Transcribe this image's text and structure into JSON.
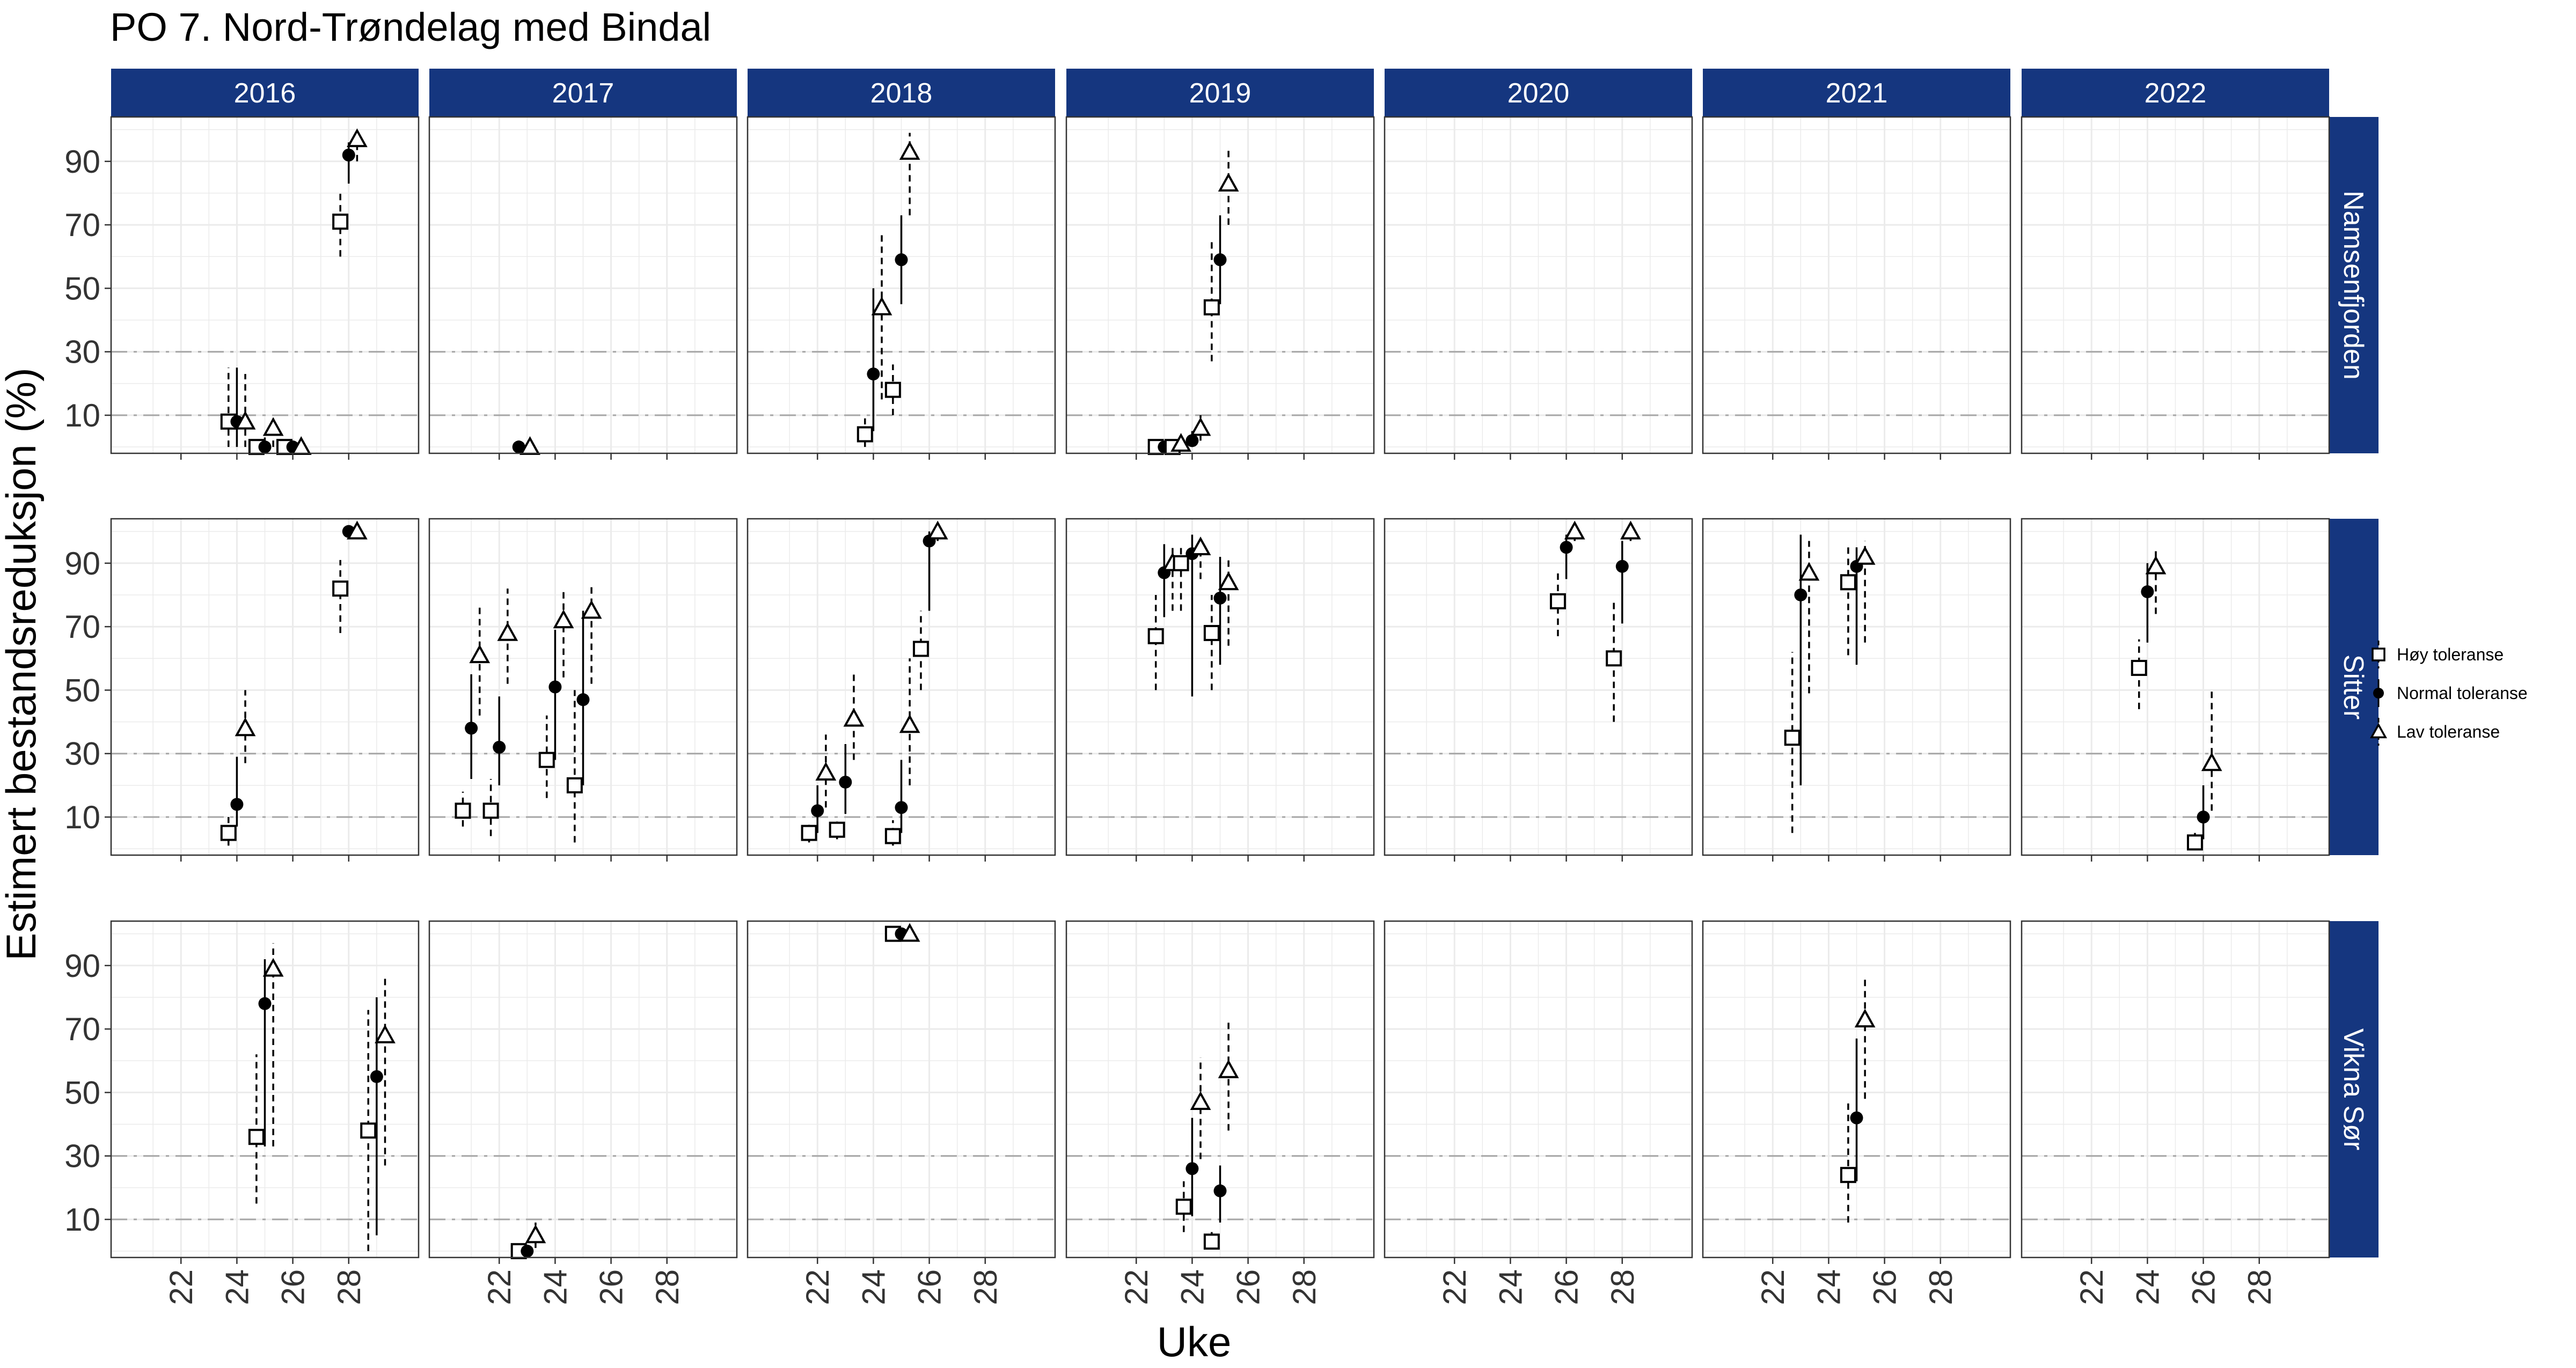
{
  "chart_data": {
    "type": "scatter",
    "title": "PO 7. Nord-Trøndelag med Bindal",
    "xlabel": "Uke",
    "ylabel": "Estimert bestandsreduksjon (%)",
    "x_ticks": [
      22,
      24,
      26,
      28
    ],
    "y_ticks": [
      10,
      30,
      50,
      70,
      90
    ],
    "xlim": [
      19.5,
      30.5
    ],
    "ylim": [
      -2,
      104
    ],
    "reference_lines": [
      10,
      30
    ],
    "grid": true,
    "legend_position": "right",
    "columns": [
      "2016",
      "2017",
      "2018",
      "2019",
      "2020",
      "2021",
      "2022"
    ],
    "rows": [
      "Namsenfjorden",
      "Sitter",
      "Vikna Sør"
    ],
    "series": [
      {
        "name": "Høy toleranse",
        "marker": "open-square",
        "line": "dashed"
      },
      {
        "name": "Normal toleranse",
        "marker": "filled-circle",
        "line": "solid"
      },
      {
        "name": "Lav toleranse",
        "marker": "open-triangle",
        "line": "dashed"
      }
    ],
    "colors": {
      "strip": "#15367f",
      "grid": "#ebebeb",
      "reference": "#a6a6a6",
      "marks": "#000000"
    },
    "points": [
      {
        "row": "Namsenfjorden",
        "col": "2016",
        "s": 0,
        "x": 23.7,
        "y": 8,
        "lo": 0,
        "hi": 25
      },
      {
        "row": "Namsenfjorden",
        "col": "2016",
        "s": 1,
        "x": 24.0,
        "y": 8,
        "lo": 0,
        "hi": 25
      },
      {
        "row": "Namsenfjorden",
        "col": "2016",
        "s": 2,
        "x": 24.3,
        "y": 8,
        "lo": 0,
        "hi": 23
      },
      {
        "row": "Namsenfjorden",
        "col": "2016",
        "s": 0,
        "x": 24.7,
        "y": 0,
        "lo": 0,
        "hi": 3
      },
      {
        "row": "Namsenfjorden",
        "col": "2016",
        "s": 1,
        "x": 25.0,
        "y": 0,
        "lo": 0,
        "hi": 3
      },
      {
        "row": "Namsenfjorden",
        "col": "2016",
        "s": 2,
        "x": 25.3,
        "y": 6,
        "lo": 0,
        "hi": 9
      },
      {
        "row": "Namsenfjorden",
        "col": "2016",
        "s": 0,
        "x": 25.7,
        "y": 0,
        "lo": 0,
        "hi": 2
      },
      {
        "row": "Namsenfjorden",
        "col": "2016",
        "s": 1,
        "x": 26.0,
        "y": 0,
        "lo": 0,
        "hi": 2
      },
      {
        "row": "Namsenfjorden",
        "col": "2016",
        "s": 2,
        "x": 26.3,
        "y": 0,
        "lo": 0,
        "hi": 3
      },
      {
        "row": "Namsenfjorden",
        "col": "2016",
        "s": 0,
        "x": 27.7,
        "y": 71,
        "lo": 60,
        "hi": 80
      },
      {
        "row": "Namsenfjorden",
        "col": "2016",
        "s": 1,
        "x": 28.0,
        "y": 92,
        "lo": 83,
        "hi": 96
      },
      {
        "row": "Namsenfjorden",
        "col": "2016",
        "s": 2,
        "x": 28.3,
        "y": 97,
        "lo": 90,
        "hi": 99
      },
      {
        "row": "Namsenfjorden",
        "col": "2017",
        "s": 1,
        "x": 22.7,
        "y": 0,
        "lo": 0,
        "hi": 2
      },
      {
        "row": "Namsenfjorden",
        "col": "2017",
        "s": 2,
        "x": 23.1,
        "y": 0,
        "lo": 0,
        "hi": 2
      },
      {
        "row": "Namsenfjorden",
        "col": "2018",
        "s": 0,
        "x": 23.7,
        "y": 4,
        "lo": 0,
        "hi": 9
      },
      {
        "row": "Namsenfjorden",
        "col": "2018",
        "s": 1,
        "x": 24.0,
        "y": 23,
        "lo": 5,
        "hi": 50
      },
      {
        "row": "Namsenfjorden",
        "col": "2018",
        "s": 2,
        "x": 24.3,
        "y": 44,
        "lo": 15,
        "hi": 67
      },
      {
        "row": "Namsenfjorden",
        "col": "2018",
        "s": 0,
        "x": 24.7,
        "y": 18,
        "lo": 10,
        "hi": 26
      },
      {
        "row": "Namsenfjorden",
        "col": "2018",
        "s": 1,
        "x": 25.0,
        "y": 59,
        "lo": 45,
        "hi": 73
      },
      {
        "row": "Namsenfjorden",
        "col": "2018",
        "s": 2,
        "x": 25.3,
        "y": 93,
        "lo": 73,
        "hi": 99
      },
      {
        "row": "Namsenfjorden",
        "col": "2019",
        "s": 0,
        "x": 22.7,
        "y": 0,
        "lo": 0,
        "hi": 2
      },
      {
        "row": "Namsenfjorden",
        "col": "2019",
        "s": 1,
        "x": 23.0,
        "y": 0,
        "lo": 0,
        "hi": 2
      },
      {
        "row": "Namsenfjorden",
        "col": "2019",
        "s": 0,
        "x": 23.3,
        "y": 0,
        "lo": 0,
        "hi": 2
      },
      {
        "row": "Namsenfjorden",
        "col": "2019",
        "s": 2,
        "x": 23.6,
        "y": 1,
        "lo": 0,
        "hi": 3
      },
      {
        "row": "Namsenfjorden",
        "col": "2019",
        "s": 1,
        "x": 24.0,
        "y": 2,
        "lo": 0,
        "hi": 5
      },
      {
        "row": "Namsenfjorden",
        "col": "2019",
        "s": 2,
        "x": 24.3,
        "y": 6,
        "lo": 2,
        "hi": 10
      },
      {
        "row": "Namsenfjorden",
        "col": "2019",
        "s": 0,
        "x": 24.7,
        "y": 44,
        "lo": 27,
        "hi": 65
      },
      {
        "row": "Namsenfjorden",
        "col": "2019",
        "s": 1,
        "x": 25.0,
        "y": 59,
        "lo": 45,
        "hi": 73
      },
      {
        "row": "Namsenfjorden",
        "col": "2019",
        "s": 2,
        "x": 25.3,
        "y": 83,
        "lo": 70,
        "hi": 94
      },
      {
        "row": "Sitter",
        "col": "2016",
        "s": 0,
        "x": 23.7,
        "y": 5,
        "lo": 1,
        "hi": 10
      },
      {
        "row": "Sitter",
        "col": "2016",
        "s": 1,
        "x": 24.0,
        "y": 14,
        "lo": 7,
        "hi": 29
      },
      {
        "row": "Sitter",
        "col": "2016",
        "s": 2,
        "x": 24.3,
        "y": 38,
        "lo": 27,
        "hi": 50
      },
      {
        "row": "Sitter",
        "col": "2016",
        "s": 0,
        "x": 27.7,
        "y": 82,
        "lo": 68,
        "hi": 91
      },
      {
        "row": "Sitter",
        "col": "2016",
        "s": 1,
        "x": 28.0,
        "y": 100,
        "lo": 98,
        "hi": 100
      },
      {
        "row": "Sitter",
        "col": "2016",
        "s": 2,
        "x": 28.3,
        "y": 100,
        "lo": 98,
        "hi": 100
      },
      {
        "row": "Sitter",
        "col": "2017",
        "s": 0,
        "x": 20.7,
        "y": 12,
        "lo": 7,
        "hi": 18
      },
      {
        "row": "Sitter",
        "col": "2017",
        "s": 1,
        "x": 21.0,
        "y": 38,
        "lo": 22,
        "hi": 55
      },
      {
        "row": "Sitter",
        "col": "2017",
        "s": 2,
        "x": 21.3,
        "y": 61,
        "lo": 42,
        "hi": 77
      },
      {
        "row": "Sitter",
        "col": "2017",
        "s": 0,
        "x": 21.7,
        "y": 12,
        "lo": 4,
        "hi": 22
      },
      {
        "row": "Sitter",
        "col": "2017",
        "s": 1,
        "x": 22.0,
        "y": 32,
        "lo": 20,
        "hi": 48
      },
      {
        "row": "Sitter",
        "col": "2017",
        "s": 2,
        "x": 22.3,
        "y": 68,
        "lo": 52,
        "hi": 82
      },
      {
        "row": "Sitter",
        "col": "2017",
        "s": 0,
        "x": 23.7,
        "y": 28,
        "lo": 16,
        "hi": 42
      },
      {
        "row": "Sitter",
        "col": "2017",
        "s": 1,
        "x": 24.0,
        "y": 51,
        "lo": 28,
        "hi": 69
      },
      {
        "row": "Sitter",
        "col": "2017",
        "s": 2,
        "x": 24.3,
        "y": 72,
        "lo": 54,
        "hi": 82
      },
      {
        "row": "Sitter",
        "col": "2017",
        "s": 0,
        "x": 24.7,
        "y": 20,
        "lo": 2,
        "hi": 50
      },
      {
        "row": "Sitter",
        "col": "2017",
        "s": 1,
        "x": 25.0,
        "y": 47,
        "lo": 20,
        "hi": 75
      },
      {
        "row": "Sitter",
        "col": "2017",
        "s": 2,
        "x": 25.3,
        "y": 75,
        "lo": 52,
        "hi": 83
      },
      {
        "row": "Sitter",
        "col": "2018",
        "s": 0,
        "x": 21.7,
        "y": 5,
        "lo": 2,
        "hi": 8
      },
      {
        "row": "Sitter",
        "col": "2018",
        "s": 1,
        "x": 22.0,
        "y": 12,
        "lo": 5,
        "hi": 20
      },
      {
        "row": "Sitter",
        "col": "2018",
        "s": 2,
        "x": 22.3,
        "y": 24,
        "lo": 13,
        "hi": 36
      },
      {
        "row": "Sitter",
        "col": "2018",
        "s": 0,
        "x": 22.7,
        "y": 6,
        "lo": 3,
        "hi": 9
      },
      {
        "row": "Sitter",
        "col": "2018",
        "s": 1,
        "x": 23.0,
        "y": 21,
        "lo": 11,
        "hi": 33
      },
      {
        "row": "Sitter",
        "col": "2018",
        "s": 2,
        "x": 23.3,
        "y": 41,
        "lo": 28,
        "hi": 55
      },
      {
        "row": "Sitter",
        "col": "2018",
        "s": 0,
        "x": 24.7,
        "y": 4,
        "lo": 1,
        "hi": 9
      },
      {
        "row": "Sitter",
        "col": "2018",
        "s": 1,
        "x": 25.0,
        "y": 13,
        "lo": 5,
        "hi": 28
      },
      {
        "row": "Sitter",
        "col": "2018",
        "s": 2,
        "x": 25.3,
        "y": 39,
        "lo": 20,
        "hi": 60
      },
      {
        "row": "Sitter",
        "col": "2018",
        "s": 0,
        "x": 25.7,
        "y": 63,
        "lo": 50,
        "hi": 75
      },
      {
        "row": "Sitter",
        "col": "2018",
        "s": 1,
        "x": 26.0,
        "y": 97,
        "lo": 75,
        "hi": 100
      },
      {
        "row": "Sitter",
        "col": "2018",
        "s": 2,
        "x": 26.3,
        "y": 100,
        "lo": 97,
        "hi": 100
      },
      {
        "row": "Sitter",
        "col": "2019",
        "s": 0,
        "x": 22.7,
        "y": 67,
        "lo": 50,
        "hi": 80
      },
      {
        "row": "Sitter",
        "col": "2019",
        "s": 1,
        "x": 23.0,
        "y": 87,
        "lo": 73,
        "hi": 96
      },
      {
        "row": "Sitter",
        "col": "2019",
        "s": 2,
        "x": 23.3,
        "y": 90,
        "lo": 75,
        "hi": 96
      },
      {
        "row": "Sitter",
        "col": "2019",
        "s": 0,
        "x": 23.6,
        "y": 90,
        "lo": 75,
        "hi": 96
      },
      {
        "row": "Sitter",
        "col": "2019",
        "s": 1,
        "x": 24.0,
        "y": 93,
        "lo": 48,
        "hi": 99
      },
      {
        "row": "Sitter",
        "col": "2019",
        "s": 2,
        "x": 24.3,
        "y": 95,
        "lo": 85,
        "hi": 99
      },
      {
        "row": "Sitter",
        "col": "2019",
        "s": 0,
        "x": 24.7,
        "y": 68,
        "lo": 50,
        "hi": 80
      },
      {
        "row": "Sitter",
        "col": "2019",
        "s": 1,
        "x": 25.0,
        "y": 79,
        "lo": 58,
        "hi": 92
      },
      {
        "row": "Sitter",
        "col": "2019",
        "s": 2,
        "x": 25.3,
        "y": 84,
        "lo": 64,
        "hi": 92
      },
      {
        "row": "Sitter",
        "col": "2020",
        "s": 0,
        "x": 25.7,
        "y": 78,
        "lo": 67,
        "hi": 87
      },
      {
        "row": "Sitter",
        "col": "2020",
        "s": 1,
        "x": 26.0,
        "y": 95,
        "lo": 85,
        "hi": 99
      },
      {
        "row": "Sitter",
        "col": "2020",
        "s": 2,
        "x": 26.3,
        "y": 100,
        "lo": 97,
        "hi": 100
      },
      {
        "row": "Sitter",
        "col": "2020",
        "s": 0,
        "x": 27.7,
        "y": 60,
        "lo": 40,
        "hi": 78
      },
      {
        "row": "Sitter",
        "col": "2020",
        "s": 1,
        "x": 28.0,
        "y": 89,
        "lo": 71,
        "hi": 97
      },
      {
        "row": "Sitter",
        "col": "2020",
        "s": 2,
        "x": 28.3,
        "y": 100,
        "lo": 97,
        "hi": 100
      },
      {
        "row": "Sitter",
        "col": "2021",
        "s": 0,
        "x": 22.7,
        "y": 35,
        "lo": 5,
        "hi": 62
      },
      {
        "row": "Sitter",
        "col": "2021",
        "s": 1,
        "x": 23.0,
        "y": 80,
        "lo": 20,
        "hi": 99
      },
      {
        "row": "Sitter",
        "col": "2021",
        "s": 2,
        "x": 23.3,
        "y": 87,
        "lo": 49,
        "hi": 97
      },
      {
        "row": "Sitter",
        "col": "2021",
        "s": 0,
        "x": 24.7,
        "y": 84,
        "lo": 61,
        "hi": 95
      },
      {
        "row": "Sitter",
        "col": "2021",
        "s": 1,
        "x": 25.0,
        "y": 89,
        "lo": 58,
        "hi": 95
      },
      {
        "row": "Sitter",
        "col": "2021",
        "s": 2,
        "x": 25.3,
        "y": 92,
        "lo": 65,
        "hi": 97
      },
      {
        "row": "Sitter",
        "col": "2022",
        "s": 0,
        "x": 23.7,
        "y": 57,
        "lo": 44,
        "hi": 66
      },
      {
        "row": "Sitter",
        "col": "2022",
        "s": 1,
        "x": 24.0,
        "y": 81,
        "lo": 65,
        "hi": 90
      },
      {
        "row": "Sitter",
        "col": "2022",
        "s": 2,
        "x": 24.3,
        "y": 89,
        "lo": 74,
        "hi": 95
      },
      {
        "row": "Sitter",
        "col": "2022",
        "s": 0,
        "x": 25.7,
        "y": 2,
        "lo": 0,
        "hi": 5
      },
      {
        "row": "Sitter",
        "col": "2022",
        "s": 1,
        "x": 26.0,
        "y": 10,
        "lo": 3,
        "hi": 20
      },
      {
        "row": "Sitter",
        "col": "2022",
        "s": 2,
        "x": 26.3,
        "y": 27,
        "lo": 12,
        "hi": 50
      },
      {
        "row": "Vikna Sør",
        "col": "2016",
        "s": 0,
        "x": 24.7,
        "y": 36,
        "lo": 15,
        "hi": 62
      },
      {
        "row": "Vikna Sør",
        "col": "2016",
        "s": 1,
        "x": 25.0,
        "y": 78,
        "lo": 33,
        "hi": 92
      },
      {
        "row": "Vikna Sør",
        "col": "2016",
        "s": 2,
        "x": 25.3,
        "y": 89,
        "lo": 33,
        "hi": 97
      },
      {
        "row": "Vikna Sør",
        "col": "2016",
        "s": 0,
        "x": 28.7,
        "y": 38,
        "lo": 0,
        "hi": 76
      },
      {
        "row": "Vikna Sør",
        "col": "2016",
        "s": 1,
        "x": 29.0,
        "y": 55,
        "lo": 5,
        "hi": 80
      },
      {
        "row": "Vikna Sør",
        "col": "2016",
        "s": 2,
        "x": 29.3,
        "y": 68,
        "lo": 27,
        "hi": 86
      },
      {
        "row": "Vikna Sør",
        "col": "2017",
        "s": 0,
        "x": 22.7,
        "y": 0,
        "lo": 0,
        "hi": 2
      },
      {
        "row": "Vikna Sør",
        "col": "2017",
        "s": 1,
        "x": 23.0,
        "y": 0,
        "lo": 0,
        "hi": 2
      },
      {
        "row": "Vikna Sør",
        "col": "2017",
        "s": 2,
        "x": 23.3,
        "y": 5,
        "lo": 1,
        "hi": 9
      },
      {
        "row": "Vikna Sør",
        "col": "2018",
        "s": 0,
        "x": 24.7,
        "y": 100,
        "lo": 99,
        "hi": 100
      },
      {
        "row": "Vikna Sør",
        "col": "2018",
        "s": 1,
        "x": 25.0,
        "y": 100,
        "lo": 99,
        "hi": 100
      },
      {
        "row": "Vikna Sør",
        "col": "2018",
        "s": 2,
        "x": 25.3,
        "y": 100,
        "lo": 99,
        "hi": 100
      },
      {
        "row": "Vikna Sør",
        "col": "2019",
        "s": 0,
        "x": 23.7,
        "y": 14,
        "lo": 6,
        "hi": 22
      },
      {
        "row": "Vikna Sør",
        "col": "2019",
        "s": 1,
        "x": 24.0,
        "y": 26,
        "lo": 11,
        "hi": 42
      },
      {
        "row": "Vikna Sør",
        "col": "2019",
        "s": 2,
        "x": 24.3,
        "y": 47,
        "lo": 29,
        "hi": 61
      },
      {
        "row": "Vikna Sør",
        "col": "2019",
        "s": 0,
        "x": 24.7,
        "y": 3,
        "lo": 1,
        "hi": 6
      },
      {
        "row": "Vikna Sør",
        "col": "2019",
        "s": 1,
        "x": 25.0,
        "y": 19,
        "lo": 9,
        "hi": 27
      },
      {
        "row": "Vikna Sør",
        "col": "2019",
        "s": 2,
        "x": 25.3,
        "y": 57,
        "lo": 38,
        "hi": 72
      },
      {
        "row": "Vikna Sør",
        "col": "2021",
        "s": 0,
        "x": 24.7,
        "y": 24,
        "lo": 9,
        "hi": 48
      },
      {
        "row": "Vikna Sør",
        "col": "2021",
        "s": 1,
        "x": 25.0,
        "y": 42,
        "lo": 22,
        "hi": 67
      },
      {
        "row": "Vikna Sør",
        "col": "2021",
        "s": 2,
        "x": 25.3,
        "y": 73,
        "lo": 48,
        "hi": 87
      }
    ]
  }
}
